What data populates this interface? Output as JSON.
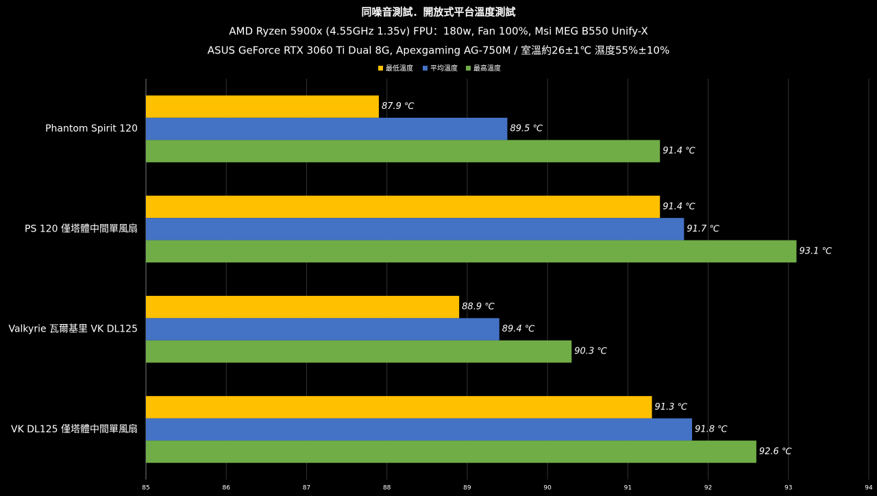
{
  "chart_data": {
    "type": "bar",
    "orientation": "horizontal",
    "title": "同噪音測試．開放式平台溫度測試",
    "subtitle": [
      "AMD Ryzen 5900x (4.55GHz 1.35v) FPU：180w, Fan 100%, Msi MEG B550 Unify-X",
      "ASUS GeForce RTX 3060 Ti Dual 8G, Apexgaming AG-750M / 室溫約26±1℃ 濕度55%±10%"
    ],
    "categories": [
      "Phantom Spirit 120",
      "PS 120 僅塔體中間單風扇",
      "Valkyrie 瓦爾基里 VK DL125",
      "VK DL125 僅塔體中間單風扇"
    ],
    "series": [
      {
        "name": "最低溫度",
        "color": "#ffc000",
        "values": [
          87.9,
          91.4,
          88.9,
          91.3
        ],
        "value_labels": [
          "87.9 ℃",
          "91.4 ℃",
          "88.9 ℃",
          "91.3 ℃"
        ]
      },
      {
        "name": "平均溫度",
        "color": "#4472c4",
        "values": [
          89.5,
          91.7,
          89.4,
          91.8
        ],
        "value_labels": [
          "89.5 ℃",
          "91.7 ℃",
          "89.4 ℃",
          "91.8 ℃"
        ]
      },
      {
        "name": "最高溫度",
        "color": "#70ad47",
        "values": [
          91.4,
          93.1,
          90.3,
          92.6
        ],
        "value_labels": [
          "91.4 ℃",
          "93.1 ℃",
          "90.3 ℃",
          "92.6 ℃"
        ]
      }
    ],
    "xlim": [
      85,
      94
    ],
    "xticks": [
      85,
      86,
      87,
      88,
      89,
      90,
      91,
      92,
      93,
      94
    ],
    "grid": true,
    "legend": "top"
  }
}
